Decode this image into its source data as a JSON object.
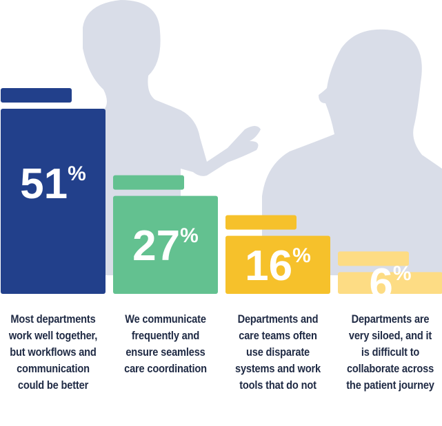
{
  "chart_data": {
    "type": "bar",
    "categories": [
      "Most departments work well together, but workflows and communication could be better",
      "We communicate frequently and ensure seamless care coordination",
      "Departments and care teams often use disparate systems and work tools that do not",
      "Departments are very siloed, and it is difficult to collaborate across the patient journey"
    ],
    "values": [
      51,
      27,
      16,
      6
    ],
    "value_labels": [
      "51",
      "27",
      "16",
      "6"
    ],
    "unit": "%",
    "colors": [
      "#22408b",
      "#63c190",
      "#f6c12b",
      "#fddc84"
    ],
    "ylim": [
      0,
      51
    ],
    "grid": false,
    "legend": "none"
  }
}
